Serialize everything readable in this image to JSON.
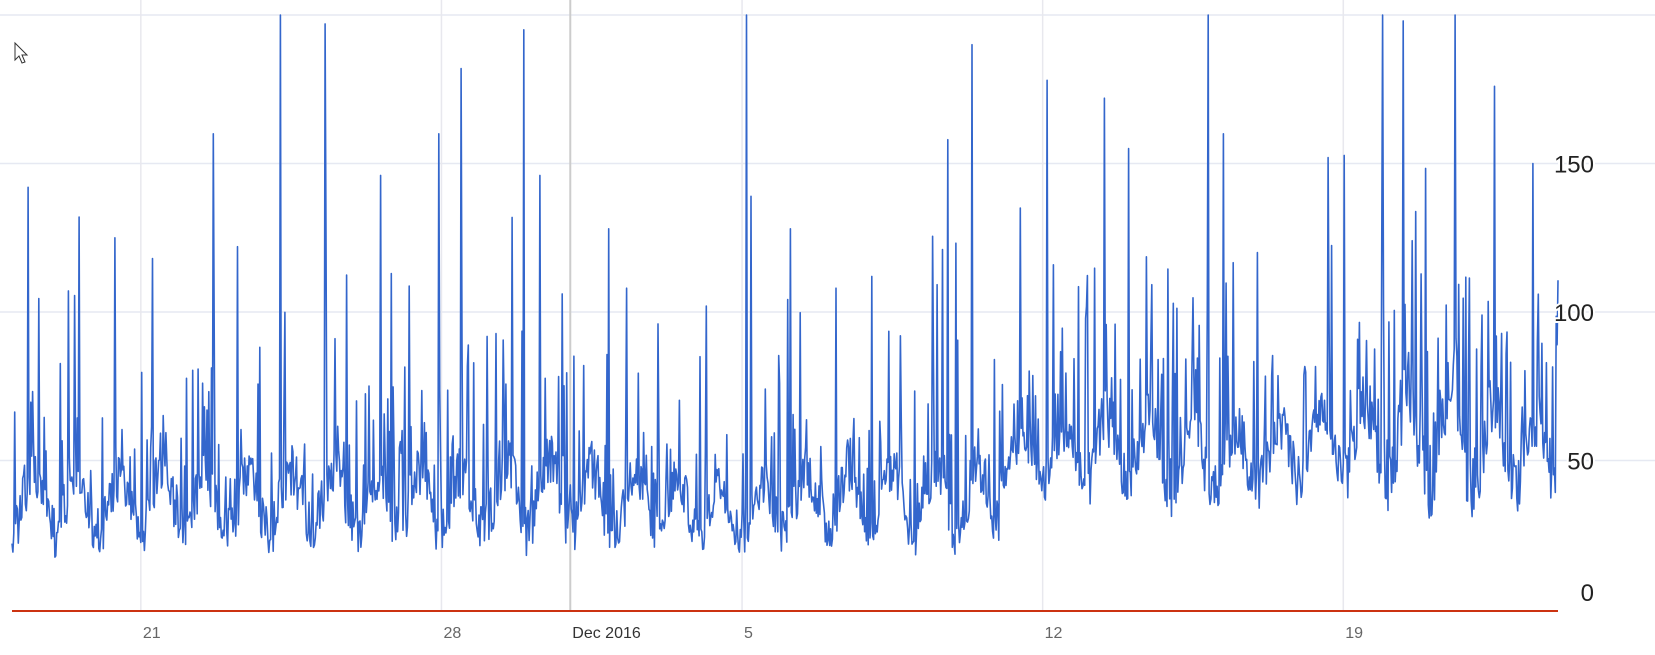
{
  "chart_data": {
    "type": "line",
    "title": "",
    "xlabel": "",
    "ylabel": "",
    "x_range": [
      "2016-11-18",
      "2016-12-24"
    ],
    "ylim": [
      0,
      200
    ],
    "grid": true,
    "legend": "none",
    "x_tick_labels": [
      {
        "date": "2016-11-21",
        "label": "21",
        "month_start": false
      },
      {
        "date": "2016-11-28",
        "label": "28",
        "month_start": false
      },
      {
        "date": "2016-12-01",
        "label": "Dec 2016",
        "month_start": true
      },
      {
        "date": "2016-12-05",
        "label": "5",
        "month_start": false
      },
      {
        "date": "2016-12-12",
        "label": "12",
        "month_start": false
      },
      {
        "date": "2016-12-19",
        "label": "19",
        "month_start": false
      }
    ],
    "y_tick_labels": [
      {
        "value": 0,
        "label": "0"
      },
      {
        "value": 50,
        "label": "50"
      },
      {
        "value": 100,
        "label": "100"
      },
      {
        "value": 150,
        "label": "150"
      }
    ],
    "series": [
      {
        "color": "#3366cc",
        "x": [
          "2016-11-18",
          "2016-11-19",
          "2016-11-20",
          "2016-11-21",
          "2016-11-22",
          "2016-11-23",
          "2016-11-24",
          "2016-11-25",
          "2016-11-26",
          "2016-11-27",
          "2016-11-28",
          "2016-11-29",
          "2016-11-30",
          "2016-12-01",
          "2016-12-02",
          "2016-12-03",
          "2016-12-04",
          "2016-12-05",
          "2016-12-06",
          "2016-12-07",
          "2016-12-08",
          "2016-12-09",
          "2016-12-10",
          "2016-12-11",
          "2016-12-12",
          "2016-12-13",
          "2016-12-14",
          "2016-12-15",
          "2016-12-16",
          "2016-12-17",
          "2016-12-18",
          "2016-12-19",
          "2016-12-20",
          "2016-12-21",
          "2016-12-22",
          "2016-12-23",
          "2016-12-24"
        ],
        "y_daily_low": [
          19,
          18,
          18,
          19,
          20,
          18,
          18,
          20,
          19,
          18,
          18,
          19,
          20,
          18,
          18,
          19,
          18,
          19,
          20,
          18,
          19,
          18,
          20,
          38,
          36,
          33,
          32,
          31,
          33,
          34,
          36,
          36,
          33,
          32,
          32,
          33,
          34
        ],
        "y_daily_typ": [
          40,
          38,
          39,
          41,
          40,
          39,
          41,
          42,
          40,
          40,
          41,
          43,
          44,
          41,
          39,
          38,
          37,
          38,
          41,
          42,
          41,
          40,
          42,
          52,
          56,
          58,
          57,
          54,
          55,
          57,
          59,
          62,
          65,
          66,
          61,
          58,
          56
        ],
        "y_daily_peak": [
          142,
          132,
          125,
          118,
          160,
          122,
          200,
          197,
          146,
          160,
          182,
          195,
          146,
          128,
          108,
          96,
          102,
          200,
          128,
          108,
          112,
          158,
          190,
          135,
          178,
          172,
          155,
          200,
          160,
          120,
          152,
          200,
          198,
          200,
          176,
          150,
          200
        ]
      }
    ]
  }
}
